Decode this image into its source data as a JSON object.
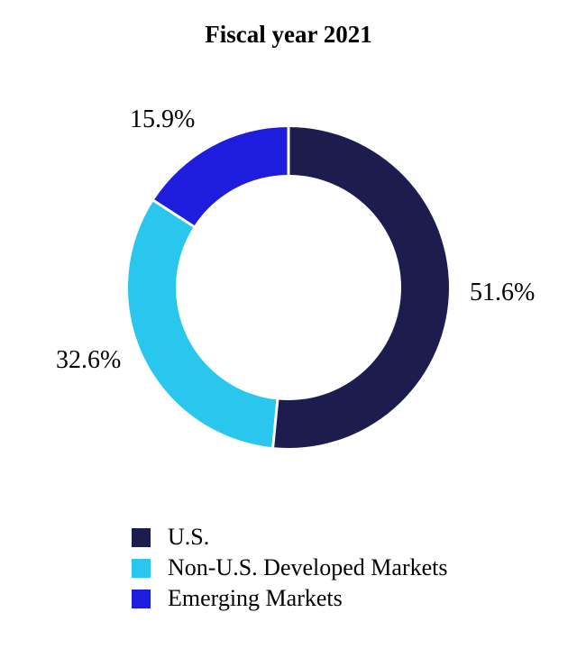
{
  "chart_data": {
    "type": "donut",
    "title": "Fiscal year 2021",
    "unit": "%",
    "direction": "clockwise",
    "start_angle": "12-oclock",
    "inner_radius_ratio": 0.7,
    "separator_color": "#ffffff",
    "label_color": "#000000",
    "legend_position": "bottom-left",
    "slices": [
      {
        "name": "U.S.",
        "value": 51.6,
        "label": "51.6%",
        "color": "#1c1c4e"
      },
      {
        "name": "Non-U.S. Developed Markets",
        "value": 32.6,
        "label": "32.6%",
        "color": "#29c7ee"
      },
      {
        "name": "Emerging Markets",
        "value": 15.9,
        "label": "15.9%",
        "color": "#1e1ddd"
      }
    ]
  }
}
